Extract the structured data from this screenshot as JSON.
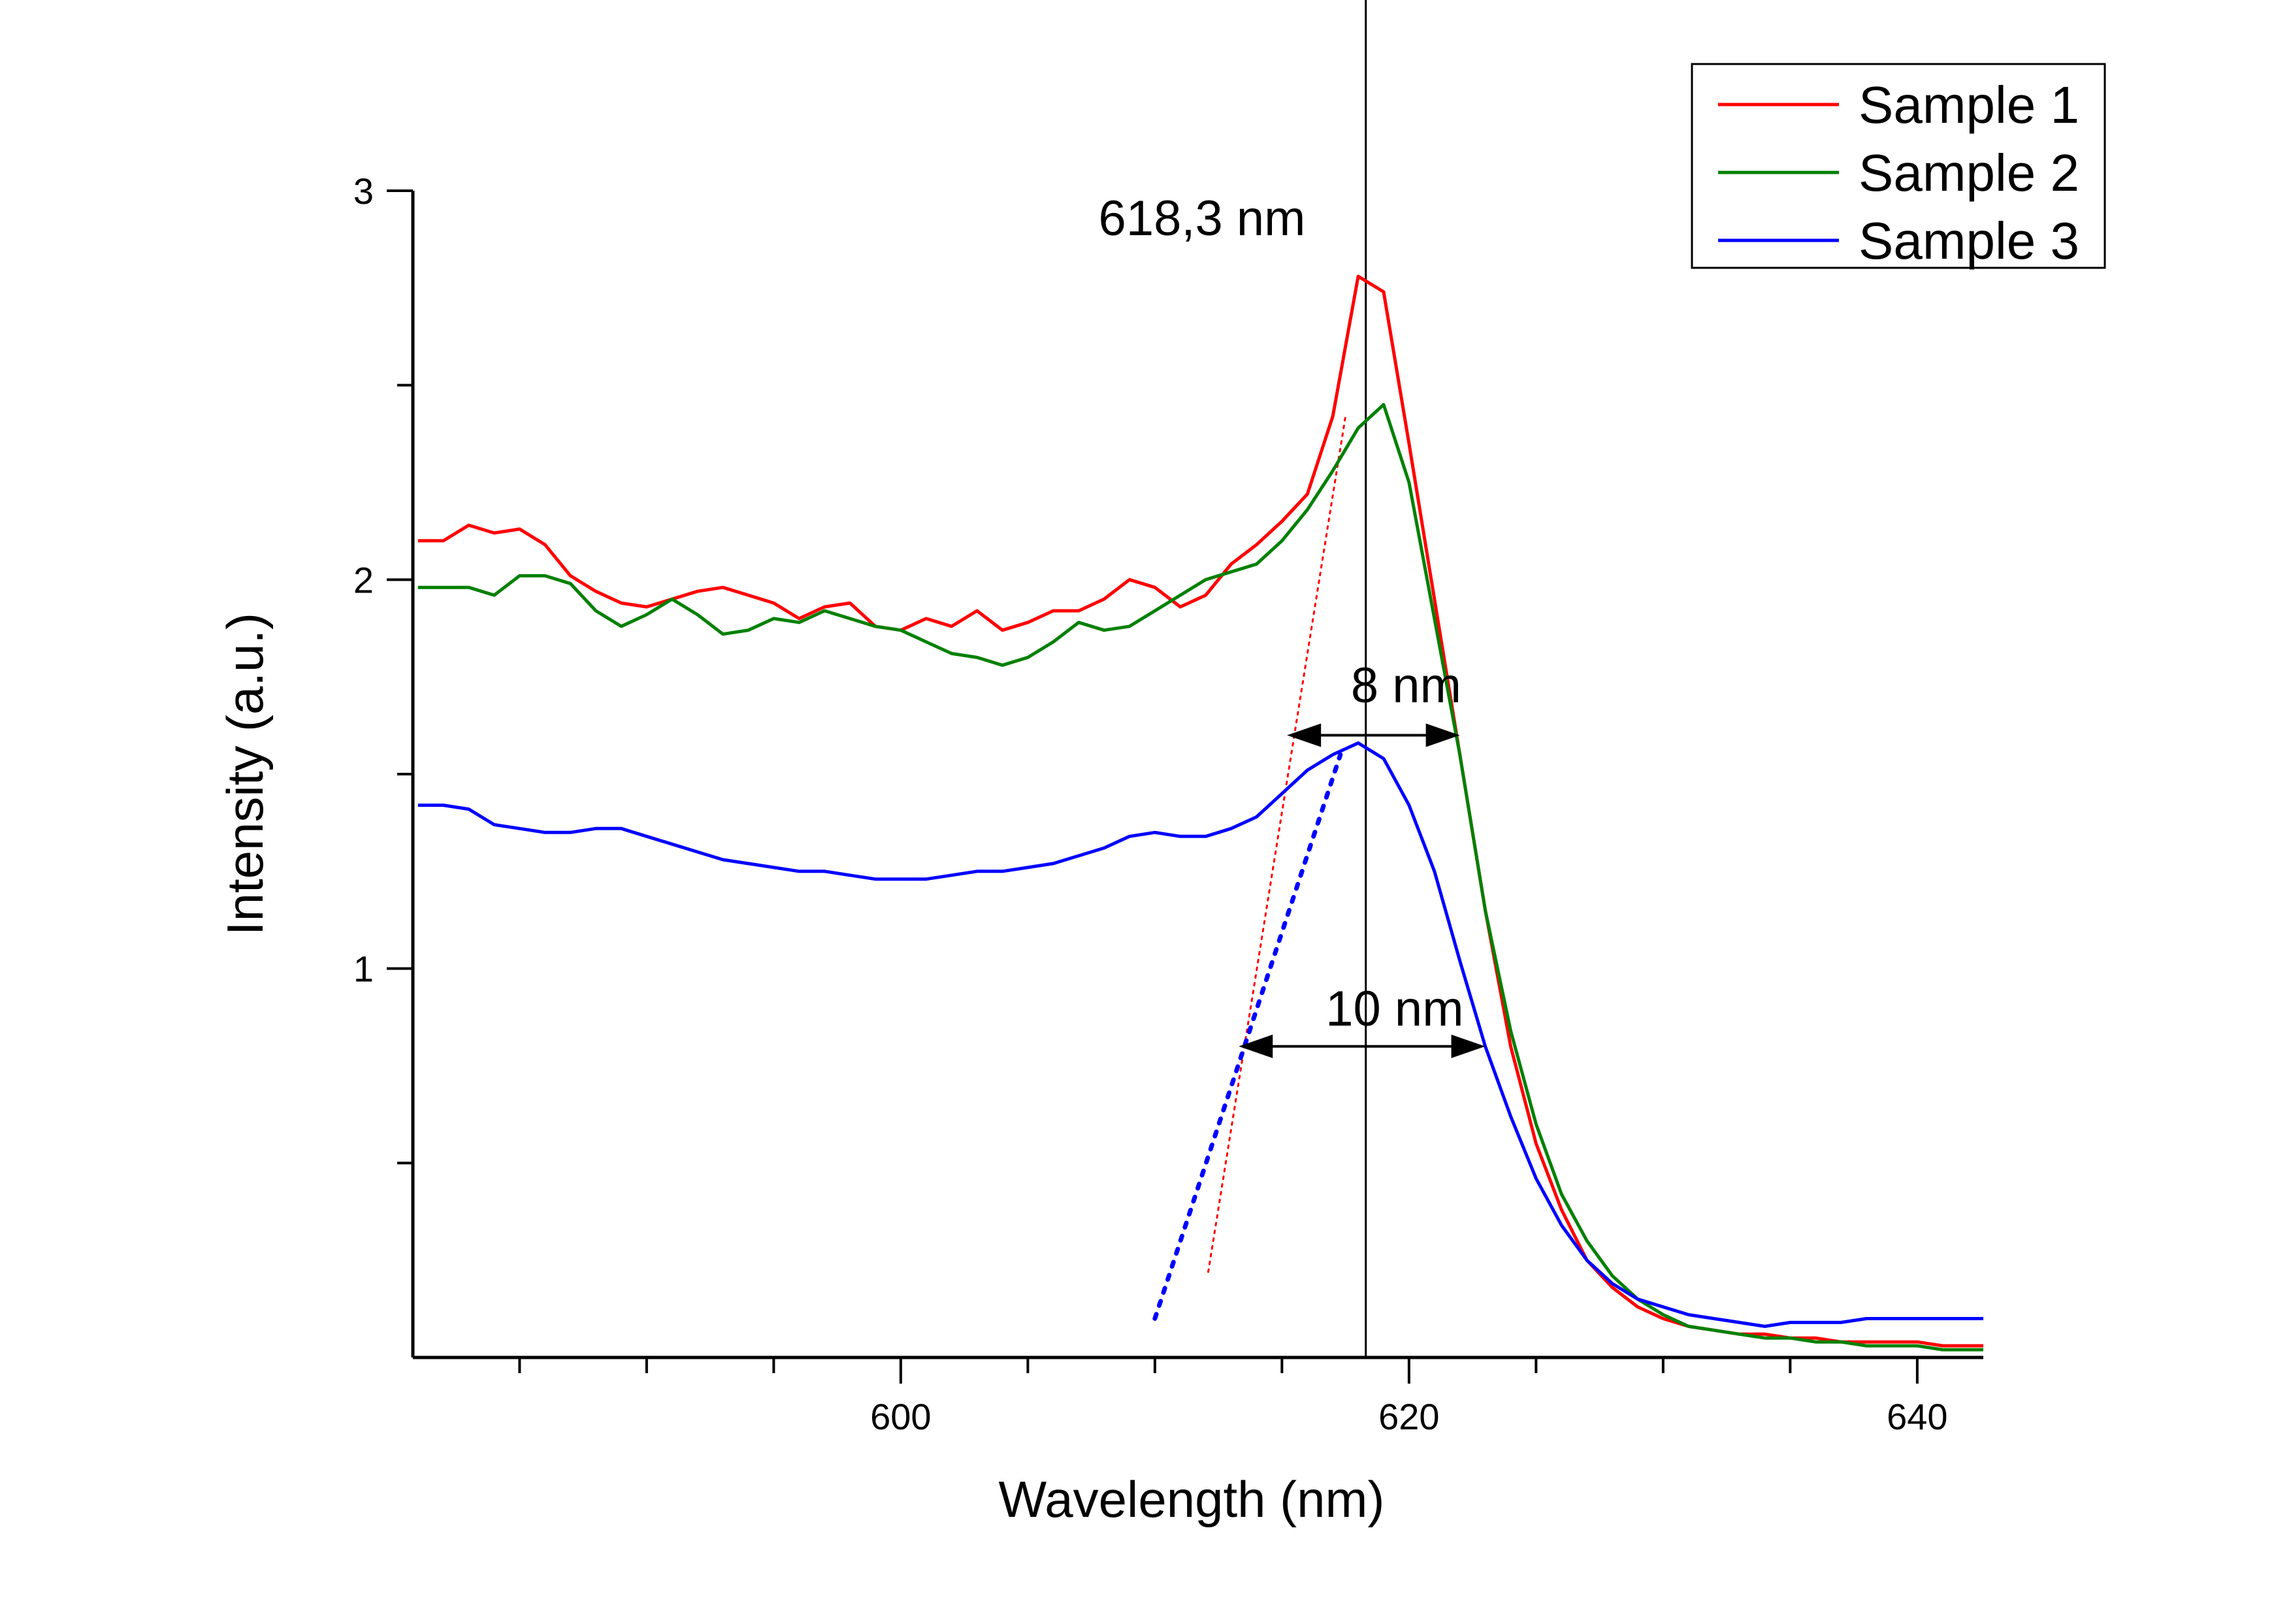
{
  "chart_data": {
    "type": "line",
    "title": "",
    "xlabel": "Wavelength (nm)",
    "ylabel": "Intensity (a.u.)",
    "xlim": [
      580.8,
      642.6
    ],
    "ylim": [
      0.0,
      3.0
    ],
    "x_ticks": [
      600,
      620,
      640
    ],
    "y_ticks": [
      1,
      2,
      3
    ],
    "x_minor_step": 5,
    "y_minor_step": 0.5,
    "grid": false,
    "legend_position": "top-right",
    "series": [
      {
        "name": "Sample 1",
        "color": "#ff0000",
        "x": [
          581,
          582,
          583,
          584,
          585,
          586,
          587,
          588,
          589,
          590,
          591,
          592,
          593,
          594,
          595,
          596,
          597,
          598,
          599,
          600,
          601,
          602,
          603,
          604,
          605,
          606,
          607,
          608,
          609,
          610,
          611,
          612,
          613,
          614,
          615,
          616,
          617,
          618,
          619,
          620,
          621,
          622,
          623,
          624,
          625,
          626,
          627,
          628,
          629,
          630,
          631,
          632,
          633,
          634,
          635,
          636,
          637,
          638,
          639,
          640,
          641,
          642,
          642.6
        ],
        "y": [
          2.1,
          2.1,
          2.14,
          2.12,
          2.13,
          2.09,
          2.01,
          1.97,
          1.94,
          1.93,
          1.95,
          1.97,
          1.98,
          1.96,
          1.94,
          1.9,
          1.93,
          1.94,
          1.88,
          1.87,
          1.9,
          1.88,
          1.92,
          1.87,
          1.89,
          1.92,
          1.92,
          1.95,
          2.0,
          1.98,
          1.93,
          1.96,
          2.04,
          2.09,
          2.15,
          2.22,
          2.42,
          2.78,
          2.74,
          2.35,
          1.95,
          1.55,
          1.15,
          0.8,
          0.55,
          0.38,
          0.25,
          0.18,
          0.13,
          0.1,
          0.08,
          0.07,
          0.06,
          0.06,
          0.05,
          0.05,
          0.04,
          0.04,
          0.04,
          0.04,
          0.03,
          0.03,
          0.03
        ]
      },
      {
        "name": "Sample 2",
        "color": "#008000",
        "x": [
          581,
          582,
          583,
          584,
          585,
          586,
          587,
          588,
          589,
          590,
          591,
          592,
          593,
          594,
          595,
          596,
          597,
          598,
          599,
          600,
          601,
          602,
          603,
          604,
          605,
          606,
          607,
          608,
          609,
          610,
          611,
          612,
          613,
          614,
          615,
          616,
          617,
          618,
          619,
          620,
          621,
          622,
          623,
          624,
          625,
          626,
          627,
          628,
          629,
          630,
          631,
          632,
          633,
          634,
          635,
          636,
          637,
          638,
          639,
          640,
          641,
          642,
          642.6
        ],
        "y": [
          1.98,
          1.98,
          1.98,
          1.96,
          2.01,
          2.01,
          1.99,
          1.92,
          1.88,
          1.91,
          1.95,
          1.91,
          1.86,
          1.87,
          1.9,
          1.89,
          1.92,
          1.9,
          1.88,
          1.87,
          1.84,
          1.81,
          1.8,
          1.78,
          1.8,
          1.84,
          1.89,
          1.87,
          1.88,
          1.92,
          1.96,
          2.0,
          2.02,
          2.04,
          2.1,
          2.18,
          2.28,
          2.39,
          2.45,
          2.25,
          1.9,
          1.55,
          1.15,
          0.84,
          0.6,
          0.42,
          0.3,
          0.21,
          0.15,
          0.11,
          0.08,
          0.07,
          0.06,
          0.05,
          0.05,
          0.04,
          0.04,
          0.03,
          0.03,
          0.03,
          0.02,
          0.02,
          0.02
        ]
      },
      {
        "name": "Sample 3",
        "color": "#0000ff",
        "x": [
          581,
          582,
          583,
          584,
          585,
          586,
          587,
          588,
          589,
          590,
          591,
          592,
          593,
          594,
          595,
          596,
          597,
          598,
          599,
          600,
          601,
          602,
          603,
          604,
          605,
          606,
          607,
          608,
          609,
          610,
          611,
          612,
          613,
          614,
          615,
          616,
          617,
          618,
          619,
          620,
          621,
          622,
          623,
          624,
          625,
          626,
          627,
          628,
          629,
          630,
          631,
          632,
          633,
          634,
          635,
          636,
          637,
          638,
          639,
          640,
          641,
          642,
          642.6
        ],
        "y": [
          1.42,
          1.42,
          1.41,
          1.37,
          1.36,
          1.35,
          1.35,
          1.36,
          1.36,
          1.34,
          1.32,
          1.3,
          1.28,
          1.27,
          1.26,
          1.25,
          1.25,
          1.24,
          1.23,
          1.23,
          1.23,
          1.24,
          1.25,
          1.25,
          1.26,
          1.27,
          1.29,
          1.31,
          1.34,
          1.35,
          1.34,
          1.34,
          1.36,
          1.39,
          1.45,
          1.51,
          1.55,
          1.58,
          1.54,
          1.42,
          1.25,
          1.02,
          0.8,
          0.62,
          0.46,
          0.34,
          0.25,
          0.19,
          0.15,
          0.13,
          0.11,
          0.1,
          0.09,
          0.08,
          0.09,
          0.09,
          0.09,
          0.1,
          0.1,
          0.1,
          0.1,
          0.1,
          0.1
        ]
      }
    ],
    "reference_line": {
      "x": 618.3,
      "label": "618,3 nm"
    },
    "annotations": [
      {
        "label": "8 nm",
        "x_from": 615.2,
        "x_to": 622.0,
        "y": 1.6,
        "color": "#000000"
      },
      {
        "label": "10 nm",
        "x_from": 613.3,
        "x_to": 623.0,
        "y": 0.8,
        "color": "#000000"
      }
    ],
    "tangent_lines": [
      {
        "series": "Sample 1",
        "x": [
          612.1,
          617.5
        ],
        "y": [
          0.22,
          2.42
        ],
        "color": "#ff0000",
        "style": "dotted"
      },
      {
        "series": "Sample 3",
        "x": [
          610.0,
          617.3
        ],
        "y": [
          0.1,
          1.55
        ],
        "color": "#0000ff",
        "style": "dotted"
      }
    ]
  }
}
